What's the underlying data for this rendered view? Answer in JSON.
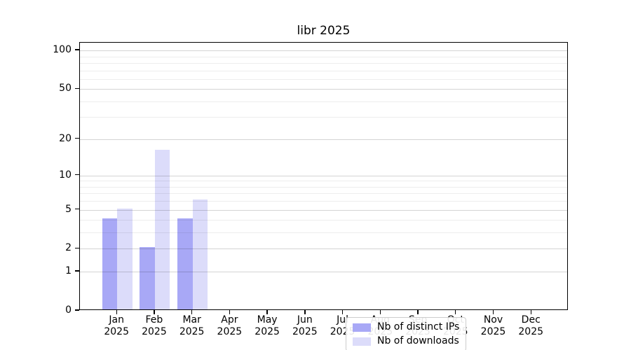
{
  "title": "libr 2025",
  "chart_data": {
    "type": "bar",
    "title": "libr 2025",
    "categories": [
      {
        "month": "Jan",
        "year": "2025"
      },
      {
        "month": "Feb",
        "year": "2025"
      },
      {
        "month": "Mar",
        "year": "2025"
      },
      {
        "month": "Apr",
        "year": "2025"
      },
      {
        "month": "May",
        "year": "2025"
      },
      {
        "month": "Jun",
        "year": "2025"
      },
      {
        "month": "Jul",
        "year": "2025"
      },
      {
        "month": "Aug",
        "year": "2025"
      },
      {
        "month": "Sep",
        "year": "2025"
      },
      {
        "month": "Oct",
        "year": "2025"
      },
      {
        "month": "Nov",
        "year": "2025"
      },
      {
        "month": "Dec",
        "year": "2025"
      }
    ],
    "series": [
      {
        "name": "Nb of distinct IPs",
        "color": "#a8a8f6",
        "values": [
          4,
          2,
          4,
          0,
          0,
          0,
          0,
          0,
          0,
          0,
          0,
          0
        ]
      },
      {
        "name": "Nb of downloads",
        "color": "#dcdcfa",
        "values": [
          5,
          16,
          6,
          0,
          0,
          0,
          0,
          0,
          0,
          0,
          0,
          0
        ]
      }
    ],
    "yaxis": {
      "scale": "log1p",
      "ticks": [
        0,
        1,
        2,
        5,
        10,
        20,
        50,
        100
      ],
      "minor_gridlines": [
        3,
        4,
        6,
        7,
        8,
        9,
        30,
        40,
        60,
        70,
        80,
        90
      ],
      "max": 115
    },
    "xlabel": "",
    "ylabel": "",
    "grid": true,
    "legend_position": "lower center"
  }
}
